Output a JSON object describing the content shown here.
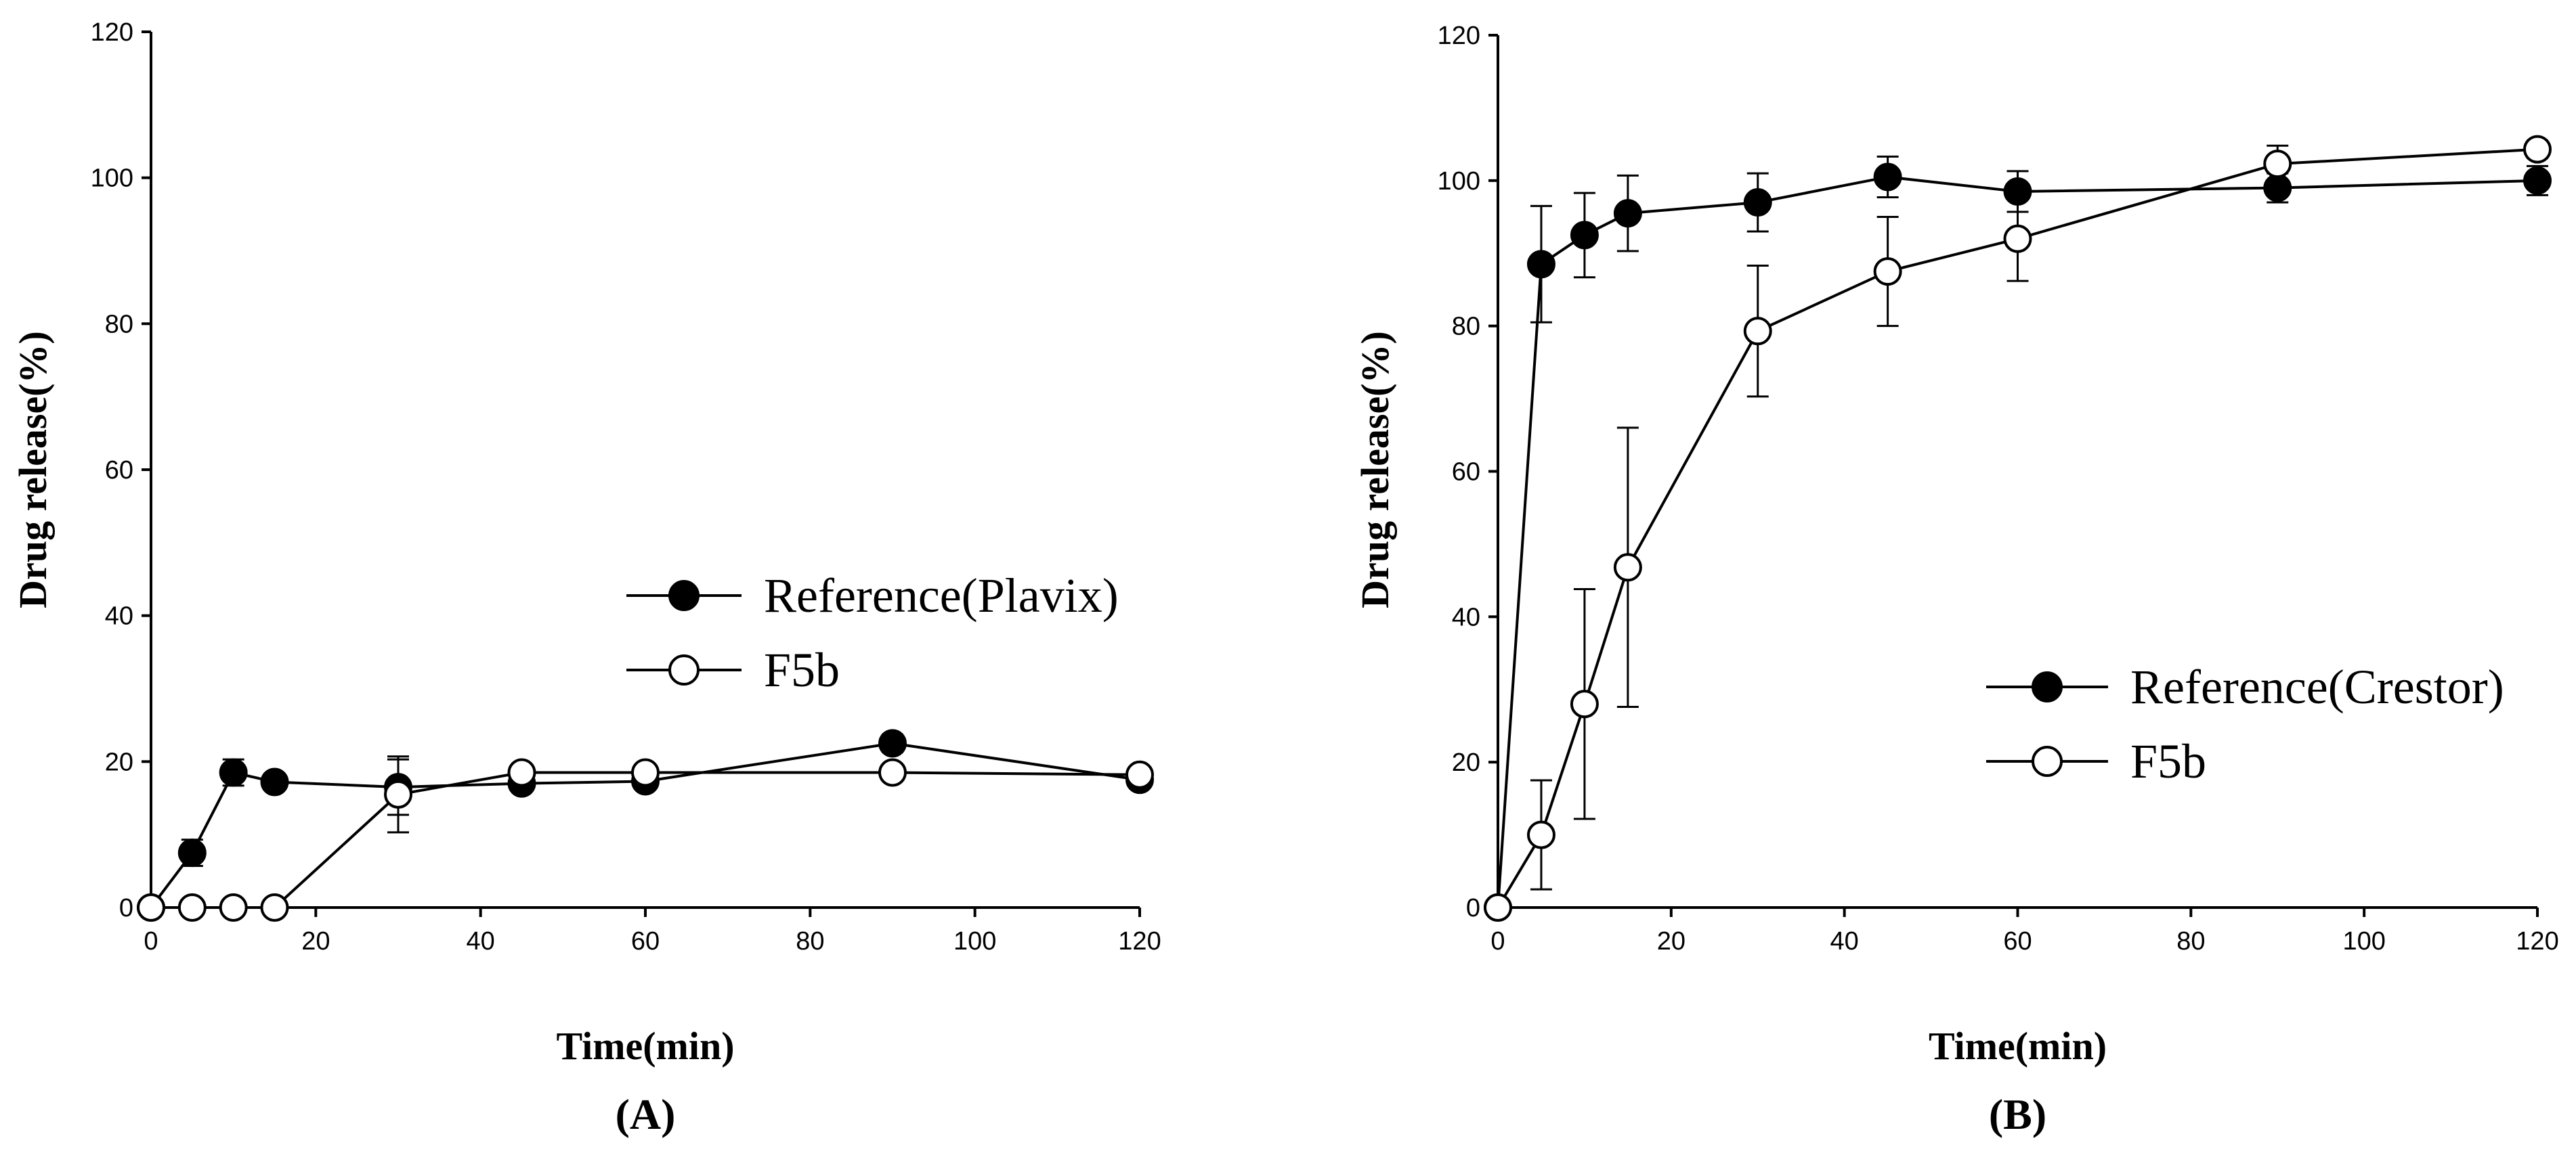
{
  "chart_data": [
    {
      "type": "line",
      "panel_label": "(A)",
      "xlabel": "Time(min)",
      "ylabel": "Drug release(%)",
      "xlim": [
        0,
        120
      ],
      "ylim": [
        0,
        120
      ],
      "xticks": [
        "0",
        "20",
        "40",
        "60",
        "80",
        "100",
        "120"
      ],
      "yticks": [
        "0",
        "20",
        "40",
        "60",
        "80",
        "100",
        "120"
      ],
      "legend_position": "center-right",
      "series": [
        {
          "name": "Reference(Plavix)",
          "marker": "filled-circle",
          "x": [
            0,
            5,
            10,
            15,
            30,
            45,
            60,
            90,
            120
          ],
          "y": [
            0,
            7.5,
            18.5,
            17.2,
            16.5,
            17.0,
            17.3,
            22.5,
            17.5
          ],
          "error": [
            0,
            1.8,
            1.8,
            1.0,
            3.8,
            0.8,
            1.0,
            1.2,
            0.8
          ]
        },
        {
          "name": "F5b",
          "marker": "open-circle",
          "x": [
            0,
            5,
            10,
            15,
            30,
            45,
            60,
            90,
            120
          ],
          "y": [
            0,
            0,
            0,
            0,
            15.5,
            18.5,
            18.5,
            18.5,
            18.2
          ],
          "error": [
            0,
            0,
            0,
            0,
            5.2,
            0.6,
            0.6,
            0.6,
            0.6
          ]
        }
      ]
    },
    {
      "type": "line",
      "panel_label": "(B)",
      "xlabel": "Time(min)",
      "ylabel": "Drug release(%)",
      "xlim": [
        0,
        120
      ],
      "ylim": [
        0,
        120
      ],
      "xticks": [
        "0",
        "20",
        "40",
        "60",
        "80",
        "100",
        "120"
      ],
      "yticks": [
        "0",
        "20",
        "40",
        "60",
        "80",
        "100",
        "120"
      ],
      "legend_position": "lower-right",
      "series": [
        {
          "name": "Reference(Crestor)",
          "marker": "filled-circle",
          "x": [
            0,
            5,
            10,
            15,
            30,
            45,
            60,
            90,
            120
          ],
          "y": [
            0,
            88.5,
            92.5,
            95.5,
            97.0,
            100.5,
            98.5,
            99.0,
            100.0
          ],
          "error": [
            0,
            8.0,
            5.8,
            5.2,
            4.0,
            2.8,
            2.8,
            2.0,
            2.0
          ]
        },
        {
          "name": "F5b",
          "marker": "open-circle",
          "x": [
            0,
            5,
            10,
            15,
            30,
            45,
            60,
            90,
            120
          ],
          "y": [
            0,
            10.0,
            28.0,
            46.8,
            79.3,
            87.5,
            92.0,
            102.3,
            104.3
          ],
          "error": [
            0,
            7.5,
            15.8,
            19.2,
            9.0,
            7.5,
            5.8,
            2.5,
            1.2
          ]
        }
      ]
    }
  ]
}
